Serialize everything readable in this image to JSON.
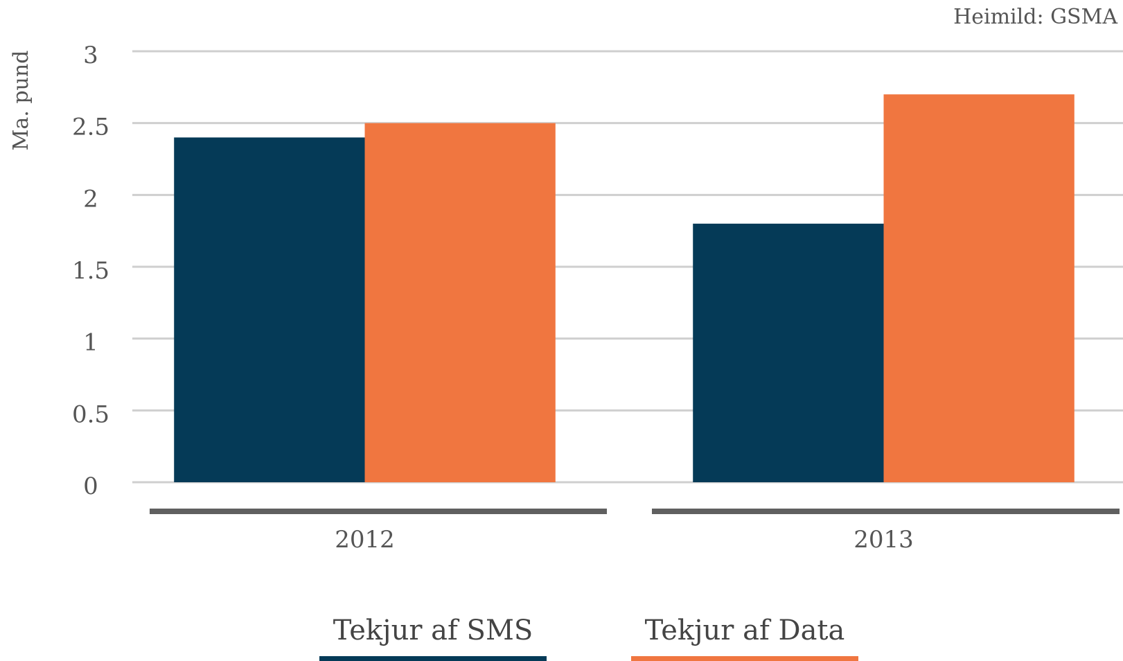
{
  "chart_data": {
    "type": "bar",
    "source": "Heimild: GSMA",
    "y_label": "Ma. pund",
    "categories": [
      "2012",
      "2013"
    ],
    "series": [
      {
        "name": "Tekjur af SMS",
        "color": "#053a57",
        "values": [
          2.4,
          1.8
        ]
      },
      {
        "name": "Tekjur af Data",
        "color": "#f07640",
        "values": [
          2.5,
          2.7
        ]
      }
    ],
    "ylim": [
      0,
      3
    ],
    "yticks": [
      0,
      0.5,
      1,
      1.5,
      2,
      2.5,
      3
    ],
    "grid": true,
    "legend": "bottom"
  }
}
